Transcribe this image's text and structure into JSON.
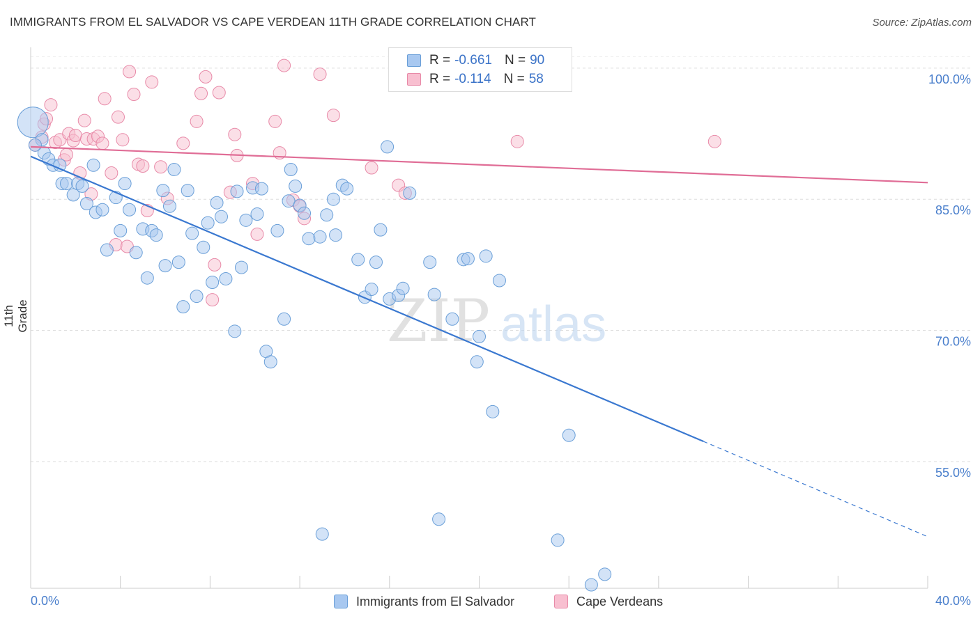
{
  "title": "IMMIGRANTS FROM EL SALVADOR VS CAPE VERDEAN 11TH GRADE CORRELATION CHART",
  "source": "Source: ZipAtlas.com",
  "watermark": {
    "zip": "ZIP",
    "atlas": "atlas"
  },
  "legend": {
    "r_label": "R =",
    "n_label": "N =",
    "rows": [
      {
        "r": "-0.661",
        "n": "90",
        "color": "#a8c8f0",
        "stroke": "#6a9fd8"
      },
      {
        "r": "-0.114",
        "n": "58",
        "color": "#f8bfd0",
        "stroke": "#e88aa8"
      }
    ]
  },
  "bottom_legend": [
    {
      "label": "Immigrants from El Salvador",
      "color": "#a8c8f0",
      "stroke": "#6a9fd8"
    },
    {
      "label": "Cape Verdeans",
      "color": "#f8bfd0",
      "stroke": "#e88aa8"
    }
  ],
  "chart_data": {
    "type": "scatter",
    "title": "IMMIGRANTS FROM EL SALVADOR VS CAPE VERDEAN 11TH GRADE CORRELATION CHART",
    "xlabel": "",
    "ylabel": "11th Grade",
    "xlim": [
      0,
      40
    ],
    "ylim": [
      40.5,
      101.5
    ],
    "x_tick_labels": [
      "0.0%",
      "40.0%"
    ],
    "y_ticks": [
      100,
      85,
      70,
      55
    ],
    "y_tick_labels": [
      "100.0%",
      "85.0%",
      "70.0%",
      "55.0%"
    ],
    "grid": true,
    "colors": {
      "blue": "#3a78d0",
      "pink": "#e06d96",
      "tick_text": "#4a7fcc"
    },
    "series": [
      {
        "name": "Immigrants from El Salvador",
        "color": "#a8c8f0",
        "stroke": "#6a9fd8",
        "trend": {
          "x0": 0,
          "y0": 89.9,
          "x1": 30,
          "y1": 57.3,
          "x_dash_end": 40,
          "y_dash_end": 46.4
        },
        "points": [
          [
            0.1,
            93.8
          ],
          [
            0.5,
            91.8
          ],
          [
            0.6,
            90.3
          ],
          [
            0.8,
            89.6
          ],
          [
            1.0,
            88.9
          ],
          [
            1.3,
            88.9
          ],
          [
            1.4,
            86.8
          ],
          [
            1.6,
            86.8
          ],
          [
            1.9,
            85.5
          ],
          [
            2.1,
            86.8
          ],
          [
            2.3,
            86.5
          ],
          [
            2.5,
            84.5
          ],
          [
            2.8,
            88.9
          ],
          [
            2.9,
            83.5
          ],
          [
            3.2,
            83.8
          ],
          [
            3.4,
            79.2
          ],
          [
            3.8,
            85.2
          ],
          [
            4.0,
            81.4
          ],
          [
            4.2,
            86.8
          ],
          [
            4.4,
            83.8
          ],
          [
            4.7,
            78.9
          ],
          [
            5.0,
            81.6
          ],
          [
            5.2,
            76.0
          ],
          [
            5.4,
            81.4
          ],
          [
            5.6,
            80.9
          ],
          [
            5.9,
            86.0
          ],
          [
            6.0,
            77.4
          ],
          [
            6.2,
            84.2
          ],
          [
            6.4,
            88.4
          ],
          [
            6.6,
            77.8
          ],
          [
            6.8,
            72.7
          ],
          [
            7.0,
            86.0
          ],
          [
            7.2,
            81.1
          ],
          [
            7.4,
            73.9
          ],
          [
            7.7,
            79.5
          ],
          [
            7.9,
            82.3
          ],
          [
            8.1,
            75.5
          ],
          [
            8.3,
            84.6
          ],
          [
            8.5,
            83.0
          ],
          [
            8.7,
            75.9
          ],
          [
            9.1,
            69.9
          ],
          [
            9.2,
            85.9
          ],
          [
            9.4,
            77.2
          ],
          [
            9.6,
            82.6
          ],
          [
            9.9,
            86.3
          ],
          [
            10.1,
            83.3
          ],
          [
            10.3,
            86.2
          ],
          [
            10.5,
            67.6
          ],
          [
            10.7,
            66.4
          ],
          [
            11.0,
            81.4
          ],
          [
            11.3,
            71.3
          ],
          [
            11.5,
            84.8
          ],
          [
            11.6,
            88.4
          ],
          [
            11.8,
            86.5
          ],
          [
            12.0,
            84.3
          ],
          [
            12.2,
            83.4
          ],
          [
            12.4,
            80.5
          ],
          [
            12.9,
            80.7
          ],
          [
            13.0,
            46.7
          ],
          [
            13.2,
            83.2
          ],
          [
            13.5,
            85.0
          ],
          [
            13.6,
            80.9
          ],
          [
            13.9,
            86.6
          ],
          [
            14.1,
            86.2
          ],
          [
            14.6,
            78.1
          ],
          [
            14.9,
            73.8
          ],
          [
            15.2,
            74.7
          ],
          [
            15.4,
            77.8
          ],
          [
            15.6,
            81.5
          ],
          [
            15.9,
            91.0
          ],
          [
            16.0,
            73.6
          ],
          [
            16.4,
            74.0
          ],
          [
            16.6,
            74.8
          ],
          [
            16.9,
            85.7
          ],
          [
            17.8,
            77.8
          ],
          [
            18.0,
            74.1
          ],
          [
            18.2,
            48.4
          ],
          [
            18.8,
            71.3
          ],
          [
            19.3,
            78.1
          ],
          [
            19.5,
            78.2
          ],
          [
            20.0,
            69.3
          ],
          [
            19.9,
            66.4
          ],
          [
            20.3,
            78.5
          ],
          [
            20.6,
            60.7
          ],
          [
            20.9,
            75.7
          ],
          [
            23.5,
            46.0
          ],
          [
            24.0,
            58.0
          ],
          [
            25.0,
            40.9
          ],
          [
            25.6,
            42.1
          ],
          [
            0.2,
            91.2
          ]
        ]
      },
      {
        "name": "Cape Verdeans",
        "color": "#f8bfd0",
        "stroke": "#e88aa8",
        "trend": {
          "x0": 0,
          "y0": 91.0,
          "x1": 40,
          "y1": 86.9
        },
        "points": [
          [
            0.2,
            91.2
          ],
          [
            0.5,
            92.1
          ],
          [
            0.6,
            93.6
          ],
          [
            0.7,
            94.2
          ],
          [
            0.9,
            95.8
          ],
          [
            1.1,
            91.5
          ],
          [
            1.3,
            91.8
          ],
          [
            1.5,
            89.5
          ],
          [
            1.6,
            90.1
          ],
          [
            1.7,
            92.5
          ],
          [
            1.9,
            91.7
          ],
          [
            2.0,
            92.3
          ],
          [
            2.2,
            88.0
          ],
          [
            2.4,
            94.0
          ],
          [
            2.5,
            91.9
          ],
          [
            2.7,
            85.6
          ],
          [
            2.8,
            91.9
          ],
          [
            3.0,
            92.2
          ],
          [
            3.2,
            91.4
          ],
          [
            3.3,
            96.5
          ],
          [
            3.6,
            88.0
          ],
          [
            3.8,
            79.8
          ],
          [
            3.9,
            94.4
          ],
          [
            4.1,
            91.8
          ],
          [
            4.3,
            79.6
          ],
          [
            4.4,
            99.6
          ],
          [
            4.6,
            97.0
          ],
          [
            4.8,
            89.0
          ],
          [
            5.0,
            88.8
          ],
          [
            5.2,
            83.7
          ],
          [
            5.4,
            98.4
          ],
          [
            5.8,
            88.7
          ],
          [
            6.1,
            85.1
          ],
          [
            6.8,
            91.4
          ],
          [
            7.4,
            93.9
          ],
          [
            7.6,
            97.1
          ],
          [
            8.1,
            73.5
          ],
          [
            8.2,
            77.5
          ],
          [
            8.4,
            97.2
          ],
          [
            8.9,
            85.8
          ],
          [
            9.1,
            92.4
          ],
          [
            9.2,
            90.0
          ],
          [
            9.9,
            86.8
          ],
          [
            10.1,
            81.0
          ],
          [
            10.9,
            93.9
          ],
          [
            11.1,
            90.3
          ],
          [
            11.7,
            84.9
          ],
          [
            12.0,
            84.2
          ],
          [
            12.2,
            82.8
          ],
          [
            12.9,
            99.3
          ],
          [
            13.5,
            94.6
          ],
          [
            15.2,
            88.6
          ],
          [
            16.4,
            86.6
          ],
          [
            16.7,
            85.7
          ],
          [
            21.7,
            91.6
          ],
          [
            30.5,
            91.6
          ],
          [
            11.3,
            100.3
          ],
          [
            7.8,
            99.0
          ]
        ]
      }
    ]
  }
}
